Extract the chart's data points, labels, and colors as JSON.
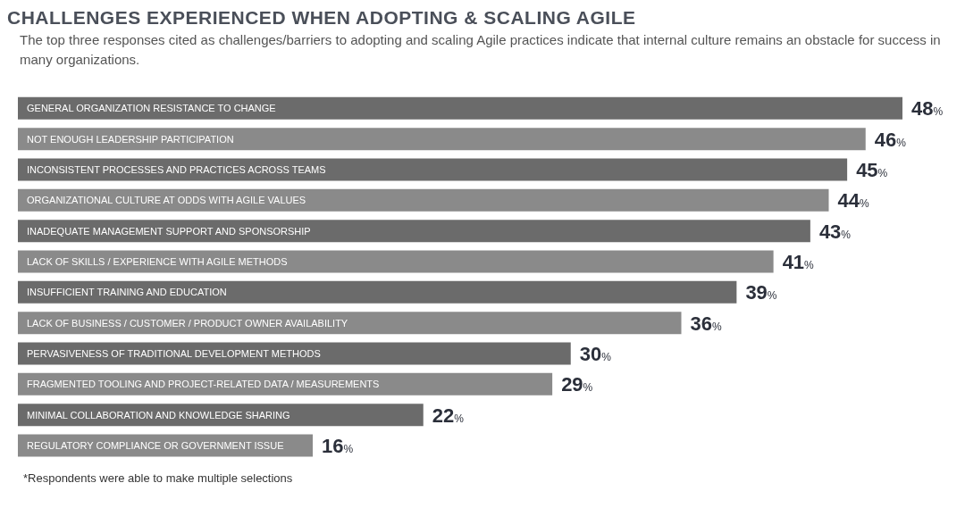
{
  "chart_data": {
    "type": "bar",
    "orientation": "horizontal",
    "title": "CHALLENGES EXPERIENCED WHEN ADOPTING & SCALING AGILE",
    "subtitle": "The top three responses cited as challenges/barriers to adopting and scaling Agile practices indicate that internal culture remains an obstacle for success in many organizations.",
    "categories": [
      "GENERAL ORGANIZATION RESISTANCE TO CHANGE",
      "NOT ENOUGH LEADERSHIP PARTICIPATION",
      "INCONSISTENT PROCESSES AND PRACTICES ACROSS TEAMS",
      "ORGANIZATIONAL CULTURE AT ODDS WITH AGILE VALUES",
      "INADEQUATE MANAGEMENT SUPPORT AND SPONSORSHIP",
      "LACK OF SKILLS / EXPERIENCE WITH AGILE METHODS",
      "INSUFFICIENT TRAINING AND EDUCATION",
      "LACK OF BUSINESS / CUSTOMER / PRODUCT OWNER AVAILABILITY",
      "PERVASIVENESS OF TRADITIONAL DEVELOPMENT METHODS",
      "FRAGMENTED TOOLING AND PROJECT-RELATED DATA / MEASUREMENTS",
      "MINIMAL COLLABORATION AND KNOWLEDGE SHARING",
      "REGULATORY COMPLIANCE OR GOVERNMENT ISSUE"
    ],
    "values": [
      48,
      46,
      45,
      44,
      43,
      41,
      39,
      36,
      30,
      29,
      22,
      16
    ],
    "value_labels": [
      "48%",
      "46%",
      "45%",
      "44%",
      "43%",
      "41%",
      "39%",
      "36%",
      "30%",
      "29%",
      "22%",
      "16%"
    ],
    "colors": [
      "#6b6b6b",
      "#8a8a8a",
      "#6b6b6b",
      "#8a8a8a",
      "#6b6b6b",
      "#8a8a8a",
      "#6b6b6b",
      "#8a8a8a",
      "#6b6b6b",
      "#8a8a8a",
      "#6b6b6b",
      "#8a8a8a"
    ],
    "grid": false,
    "legend": false,
    "annotations": [
      "*Respondents were able to make multiple selections"
    ]
  }
}
